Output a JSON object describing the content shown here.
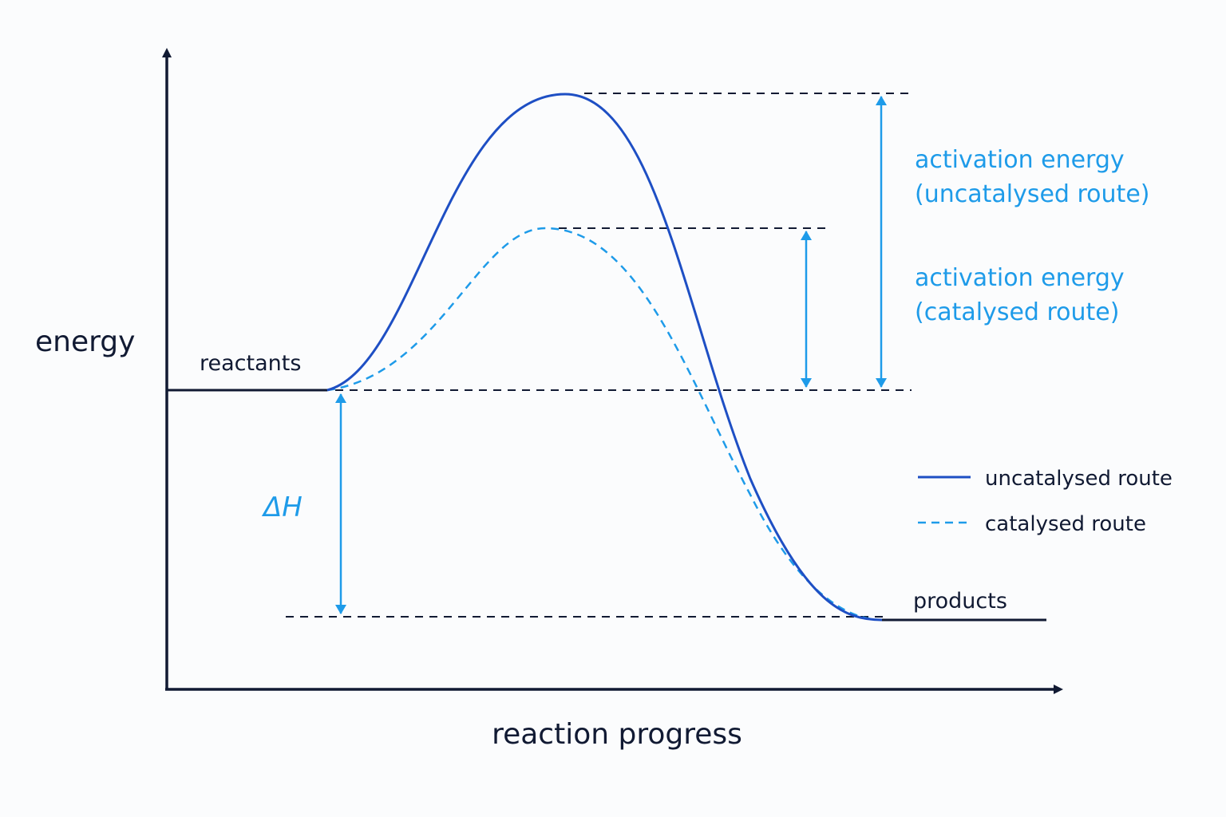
{
  "axes": {
    "y_label": "energy",
    "x_label": "reaction progress"
  },
  "labels": {
    "reactants": "reactants",
    "products": "products",
    "delta_h": "ΔH",
    "activation_uncatalysed": [
      "activation energy",
      "(uncatalysed route)"
    ],
    "activation_catalysed": [
      "activation energy",
      "(catalysed route)"
    ]
  },
  "legend": {
    "uncatalysed": "uncatalysed route",
    "catalysed": "catalysed route"
  },
  "colors": {
    "axis": "#111a33",
    "uncatalysed_curve": "#1e4fc4",
    "catalysed_curve": "#1e9be9",
    "annotation": "#1e9be9",
    "background": "#fbfcfd"
  }
}
